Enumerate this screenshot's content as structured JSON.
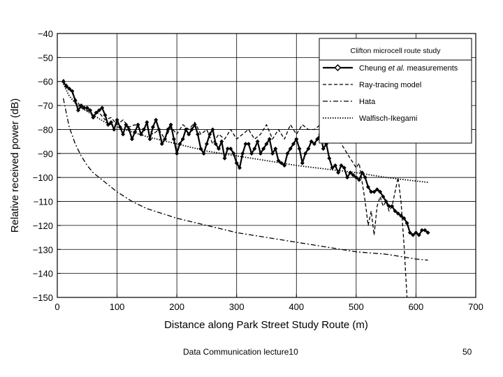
{
  "footer": {
    "title": "Data Communication lecture10",
    "page_number": "50"
  },
  "chart_data": {
    "type": "line",
    "title": "",
    "xlabel": "Distance along Park Street Study Route (m)",
    "ylabel": "Relative received power (dB)",
    "xlim": [
      0,
      700
    ],
    "ylim": [
      -150,
      -40
    ],
    "xticks": [
      0,
      100,
      200,
      300,
      400,
      500,
      600,
      700
    ],
    "yticks": [
      -40,
      -50,
      -60,
      -70,
      -80,
      -90,
      -100,
      -110,
      -120,
      -130,
      -140,
      -150
    ],
    "grid": true,
    "legend": {
      "title": "Clifton microcell route study",
      "position": "top-right"
    },
    "series": [
      {
        "name": "Cheung et al. measurements",
        "style": "solid-diamond",
        "x": [
          10,
          15,
          20,
          25,
          30,
          35,
          40,
          45,
          50,
          55,
          60,
          65,
          70,
          75,
          80,
          85,
          90,
          95,
          100,
          105,
          110,
          115,
          120,
          125,
          130,
          135,
          140,
          145,
          150,
          155,
          160,
          165,
          170,
          175,
          180,
          185,
          190,
          195,
          200,
          205,
          210,
          215,
          220,
          225,
          230,
          235,
          240,
          245,
          250,
          255,
          260,
          265,
          270,
          275,
          280,
          285,
          290,
          295,
          300,
          305,
          310,
          315,
          320,
          325,
          330,
          335,
          340,
          345,
          350,
          355,
          360,
          365,
          370,
          375,
          380,
          385,
          390,
          395,
          400,
          405,
          410,
          415,
          420,
          425,
          430,
          435,
          440,
          445,
          450,
          455,
          460,
          465,
          470,
          475,
          480,
          485,
          490,
          495,
          500,
          505,
          510,
          515,
          520,
          525,
          530,
          535,
          540,
          545,
          550,
          555,
          560,
          565,
          570,
          575,
          580,
          585,
          590,
          595,
          600,
          605,
          610,
          615,
          620
        ],
        "y": [
          -60,
          -62,
          -63,
          -64,
          -68,
          -72,
          -70,
          -71,
          -71,
          -72,
          -75,
          -73,
          -72,
          -71,
          -74,
          -78,
          -77,
          -80,
          -76,
          -79,
          -82,
          -78,
          -80,
          -84,
          -81,
          -78,
          -82,
          -80,
          -77,
          -84,
          -79,
          -76,
          -80,
          -86,
          -84,
          -80,
          -78,
          -84,
          -90,
          -86,
          -84,
          -80,
          -82,
          -80,
          -78,
          -82,
          -88,
          -90,
          -86,
          -82,
          -80,
          -86,
          -88,
          -85,
          -92,
          -88,
          -88,
          -90,
          -94,
          -96,
          -90,
          -86,
          -86,
          -90,
          -88,
          -85,
          -90,
          -88,
          -86,
          -84,
          -90,
          -88,
          -93,
          -94,
          -95,
          -90,
          -88,
          -86,
          -84,
          -88,
          -94,
          -90,
          -88,
          -85,
          -86,
          -84,
          -82,
          -88,
          -86,
          -92,
          -96,
          -95,
          -98,
          -95,
          -96,
          -100,
          -98,
          -99,
          -100,
          -101,
          -98,
          -100,
          -104,
          -106,
          -106,
          -105,
          -106,
          -108,
          -110,
          -112,
          -112,
          -114,
          -115,
          -116,
          -117,
          -119,
          -123,
          -124,
          -123,
          -124,
          -122,
          -122,
          -123
        ]
      },
      {
        "name": "Ray-tracing model",
        "style": "dashed",
        "x": [
          10,
          20,
          30,
          40,
          50,
          60,
          70,
          80,
          90,
          100,
          110,
          120,
          130,
          140,
          150,
          160,
          170,
          180,
          190,
          200,
          210,
          220,
          230,
          240,
          250,
          260,
          270,
          280,
          290,
          300,
          310,
          320,
          330,
          340,
          350,
          360,
          370,
          380,
          390,
          400,
          410,
          420,
          430,
          440,
          450,
          460,
          470,
          480,
          490,
          500,
          505,
          510,
          515,
          520,
          525,
          530,
          535,
          540,
          545,
          550,
          555,
          560,
          565,
          570,
          575,
          580,
          585
        ],
        "y": [
          -59,
          -63,
          -67,
          -71,
          -72,
          -74,
          -73,
          -76,
          -75,
          -78,
          -76,
          -79,
          -78,
          -80,
          -79,
          -82,
          -80,
          -84,
          -79,
          -82,
          -78,
          -80,
          -77,
          -82,
          -80,
          -86,
          -82,
          -84,
          -80,
          -84,
          -82,
          -80,
          -84,
          -82,
          -78,
          -84,
          -80,
          -84,
          -78,
          -82,
          -78,
          -80,
          -80,
          -78,
          -77,
          -80,
          -84,
          -88,
          -92,
          -96,
          -94,
          -102,
          -110,
          -120,
          -114,
          -124,
          -112,
          -108,
          -112,
          -110,
          -114,
          -112,
          -106,
          -100,
          -110,
          -128,
          -150
        ]
      },
      {
        "name": "Hata",
        "style": "dash-dot",
        "x": [
          10,
          20,
          30,
          40,
          50,
          60,
          80,
          100,
          125,
          150,
          175,
          200,
          250,
          300,
          350,
          400,
          450,
          500,
          550,
          600,
          620
        ],
        "y": [
          -67,
          -79,
          -86,
          -91,
          -95,
          -98,
          -102,
          -106,
          -110,
          -113,
          -115,
          -117,
          -120,
          -123,
          -125,
          -127,
          -129,
          -131,
          -132,
          -134,
          -134.5
        ]
      },
      {
        "name": "Walfisch-Ikegami",
        "style": "dotted",
        "x": [
          10,
          20,
          30,
          40,
          60,
          80,
          100,
          150,
          200,
          250,
          300,
          350,
          400,
          450,
          500,
          550,
          600,
          620
        ],
        "y": [
          -61,
          -66,
          -69,
          -71,
          -74,
          -77,
          -79,
          -83,
          -86,
          -89,
          -91,
          -93,
          -95,
          -96.5,
          -98,
          -100,
          -101.5,
          -102
        ]
      }
    ]
  }
}
